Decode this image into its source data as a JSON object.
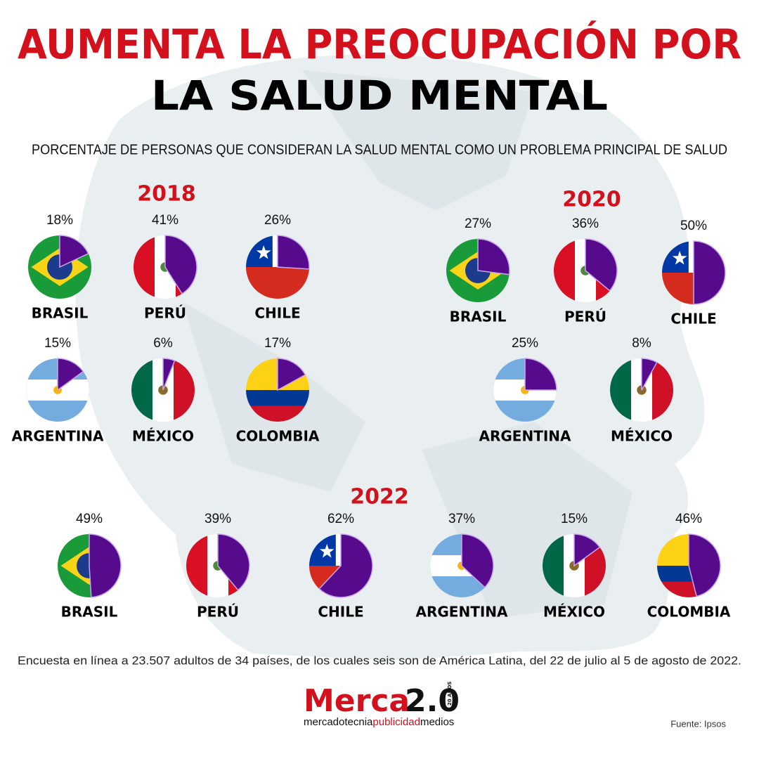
{
  "header": {
    "title_line1": "AUMENTA LA PREOCUPACIÓN POR",
    "title_line2": "LA SALUD MENTAL",
    "subtitle": "PORCENTAJE DE PERSONAS QUE CONSIDERAN LA SALUD MENTAL COMO UN PROBLEMA PRINCIPAL DE SALUD"
  },
  "chart_data": [
    {
      "type": "pie",
      "title": "2018",
      "categories": [
        "BRASIL",
        "PERÚ",
        "CHILE",
        "ARGENTINA",
        "MÉXICO",
        "COLOMBIA"
      ],
      "values": [
        18,
        41,
        26,
        15,
        6,
        17
      ],
      "value_labels": [
        "18%",
        "41%",
        "26%",
        "15%",
        "6%",
        "17%"
      ],
      "color": "#560b8c"
    },
    {
      "type": "pie",
      "title": "2020",
      "categories": [
        "BRASIL",
        "PERÚ",
        "CHILE",
        "ARGENTINA",
        "MÉXICO"
      ],
      "values": [
        27,
        36,
        50,
        25,
        8
      ],
      "value_labels": [
        "27%",
        "36%",
        "50%",
        "25%",
        "8%"
      ],
      "color": "#560b8c"
    },
    {
      "type": "pie",
      "title": "2022",
      "categories": [
        "BRASIL",
        "PERÚ",
        "CHILE",
        "ARGENTINA",
        "MÉXICO",
        "COLOMBIA"
      ],
      "values": [
        49,
        39,
        62,
        37,
        15,
        46
      ],
      "value_labels": [
        "49%",
        "39%",
        "62%",
        "37%",
        "15%",
        "46%"
      ],
      "color": "#560b8c"
    }
  ],
  "footnote": "Encuesta en línea a 23.507 adultos de 34 países, de los cuales seis son de América Latina, del 22 de julio al 5 de agosto de 2022.",
  "logo": {
    "name": "Merca",
    "version": "2.0",
    "badge": "20 AÑOS",
    "tagline_1": "mercadotecnia",
    "tagline_2": "publicidad",
    "tagline_3": "medios"
  },
  "source": "Fuente: Ipsos"
}
